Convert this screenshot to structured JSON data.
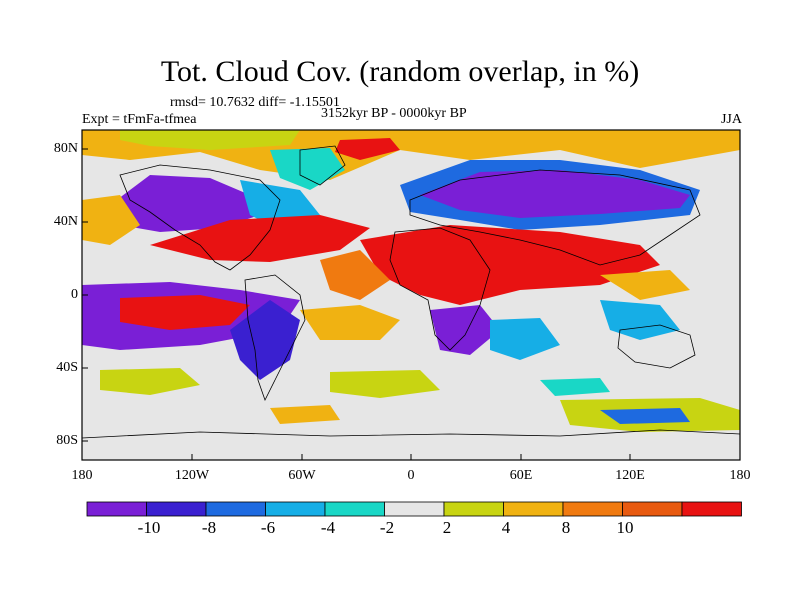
{
  "plot": {
    "title": "Tot. Cloud Cov. (random overlap, in %)",
    "stats": "rmsd= 10.7632 diff= -1.15501",
    "period": "3152kyr BP - 0000kyr BP",
    "experiment": "Expt = tFmFa-tfmea",
    "season": "JJA"
  },
  "axes": {
    "lat_labels": [
      "80N",
      "40N",
      "0",
      "40S",
      "80S"
    ],
    "lon_labels": [
      "180",
      "120W",
      "60W",
      "0",
      "60E",
      "120E",
      "180"
    ]
  },
  "colorbar": {
    "labels": [
      "-10",
      "-8",
      "-6",
      "-4",
      "-2",
      "2",
      "4",
      "8",
      "10"
    ],
    "colors": [
      "#7a1fd6",
      "#3a20d0",
      "#1e6ae0",
      "#16aee6",
      "#19d7c6",
      "#e6e6e6",
      "#c8d412",
      "#f0b212",
      "#f07a10",
      "#e85a10",
      "#e81212"
    ]
  },
  "map_colors": {
    "neg_strong": "#7a1fd6",
    "neg_mid": "#3a20d0",
    "neg_weak": "#1e6ae0",
    "neg_light": "#16aee6",
    "neg_faint": "#19d7c6",
    "neutral": "#e6e6e6",
    "pos_faint": "#c8d412",
    "pos_light": "#f0b212",
    "pos_mid": "#f07a10",
    "pos_strong": "#e81212"
  }
}
